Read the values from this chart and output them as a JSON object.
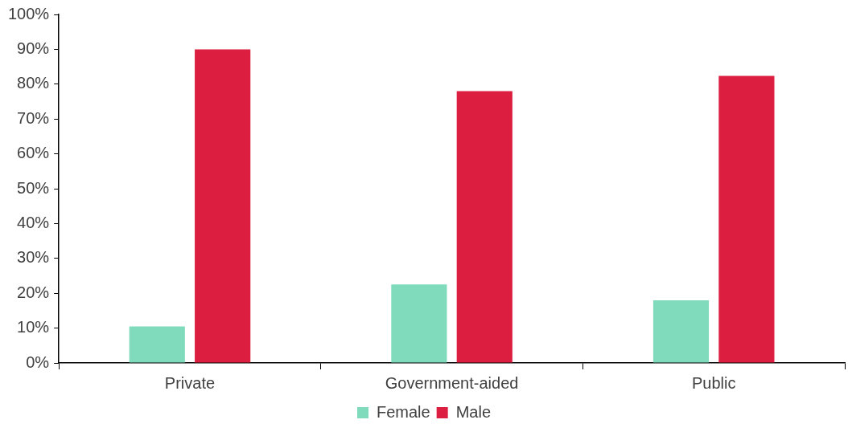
{
  "chart_data": {
    "type": "bar",
    "categories": [
      "Private",
      "Government-aided",
      "Public"
    ],
    "series": [
      {
        "name": "Female",
        "color": "#7fdbbb",
        "values": [
          10.5,
          22.5,
          18
        ]
      },
      {
        "name": "Male",
        "color": "#dc1f40",
        "values": [
          90,
          78,
          82.4
        ]
      }
    ],
    "ylim": [
      0,
      100
    ],
    "yticks": [
      {
        "value": 0,
        "label": "0%"
      },
      {
        "value": 10,
        "label": "10%"
      },
      {
        "value": 20,
        "label": "20%"
      },
      {
        "value": 30,
        "label": "30%"
      },
      {
        "value": 40,
        "label": "40%"
      },
      {
        "value": 50,
        "label": "50%"
      },
      {
        "value": 60,
        "label": "60%"
      },
      {
        "value": 70,
        "label": "70%"
      },
      {
        "value": 80,
        "label": "80%"
      },
      {
        "value": 90,
        "label": "90%"
      },
      {
        "value": 100,
        "label": "100%"
      }
    ],
    "grid": false,
    "legend": "bottom"
  }
}
